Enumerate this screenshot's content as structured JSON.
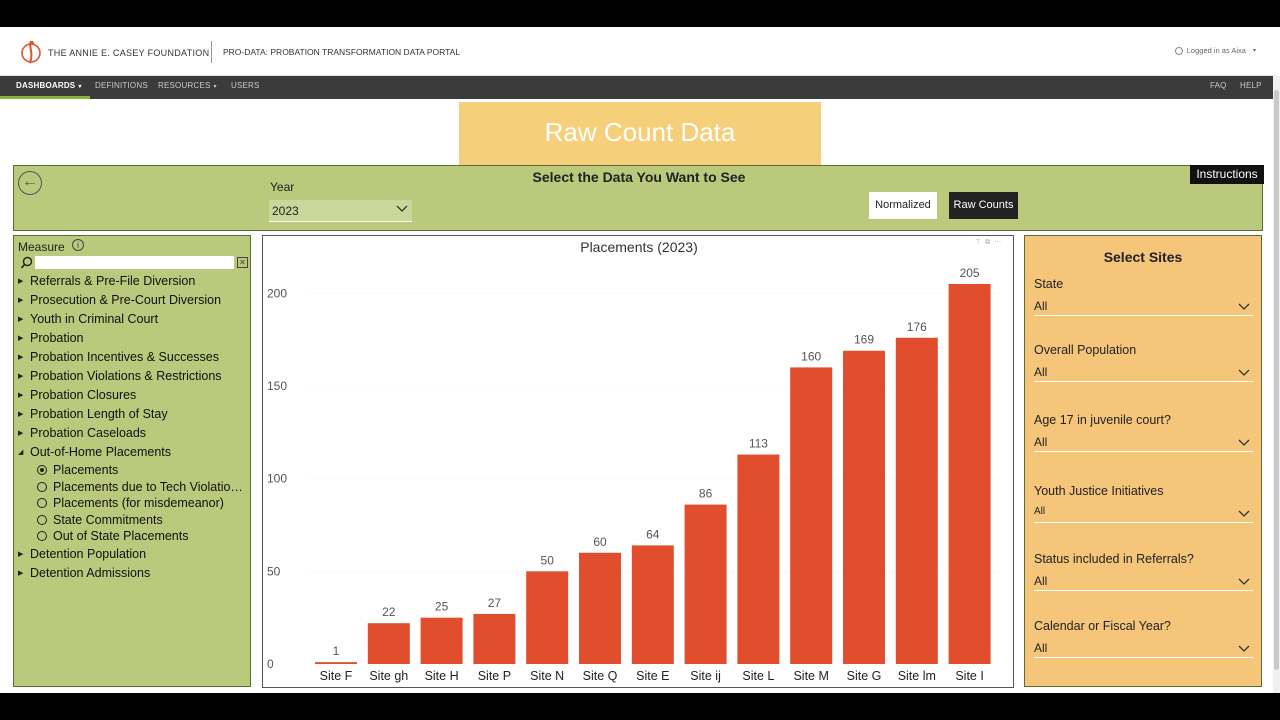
{
  "header": {
    "org_name": "THE ANNIE E. CASEY FOUNDATION",
    "portal_name": "PRO-DATA: PROBATION TRANSFORMATION DATA PORTAL",
    "logged_in": "Logged in as Aixa",
    "logo_color": "#e2522f"
  },
  "nav": {
    "dashboards": "DASHBOARDS",
    "definitions": "DEFINITIONS",
    "resources": "RESOURCES",
    "users": "USERS",
    "faq": "FAQ",
    "help": "HELP"
  },
  "banner": {
    "title": "Raw Count Data"
  },
  "select_bar": {
    "title": "Select the Data You Want to See",
    "year_label": "Year",
    "year_value": "2023",
    "normalized_label": "Normalized",
    "raw_counts_label": "Raw Counts",
    "instructions_label": "Instructions",
    "active_mode": "Raw Counts"
  },
  "measure": {
    "title": "Measure",
    "search_placeholder": "",
    "groups": [
      "Referrals & Pre-File Diversion",
      "Prosecution & Pre-Court Diversion",
      "Youth in Criminal Court",
      "Probation",
      "Probation Incentives & Successes",
      "Probation Violations & Restrictions",
      "Probation Closures",
      "Probation Length of Stay",
      "Probation Caseloads"
    ],
    "expanded_group": "Out-of-Home Placements",
    "sub_items": [
      "Placements",
      "Placements due to Tech Violatio…",
      "Placements (for misdemeanor)",
      "State Commitments",
      "Out of State Placements"
    ],
    "selected_sub_item": "Placements",
    "groups_after": [
      "Detention Population",
      "Detention Admissions"
    ]
  },
  "chart_data": {
    "type": "bar",
    "title": "Placements (2023)",
    "categories": [
      "Site F",
      "Site gh",
      "Site H",
      "Site P",
      "Site N",
      "Site Q",
      "Site E",
      "Site ij",
      "Site L",
      "Site M",
      "Site G",
      "Site lm",
      "Site I"
    ],
    "values": [
      1,
      22,
      25,
      27,
      50,
      60,
      64,
      86,
      113,
      160,
      169,
      176,
      205
    ],
    "yticks": [
      0,
      50,
      100,
      150,
      200
    ],
    "ylim": [
      0,
      205
    ],
    "xlabel": "",
    "ylabel": "",
    "grid": true,
    "bar_color": "#e04e2e"
  },
  "sites": {
    "title": "Select Sites",
    "filters": [
      {
        "label": "State",
        "value": "All"
      },
      {
        "label": "Overall Population",
        "value": "All"
      },
      {
        "label": "Age 17 in juvenile court?",
        "value": "All"
      },
      {
        "label": "Youth Justice Initiatives",
        "value": "All"
      },
      {
        "label": "Status included in Referrals?",
        "value": "All"
      },
      {
        "label": "Calendar or Fiscal Year?",
        "value": "All"
      }
    ]
  }
}
